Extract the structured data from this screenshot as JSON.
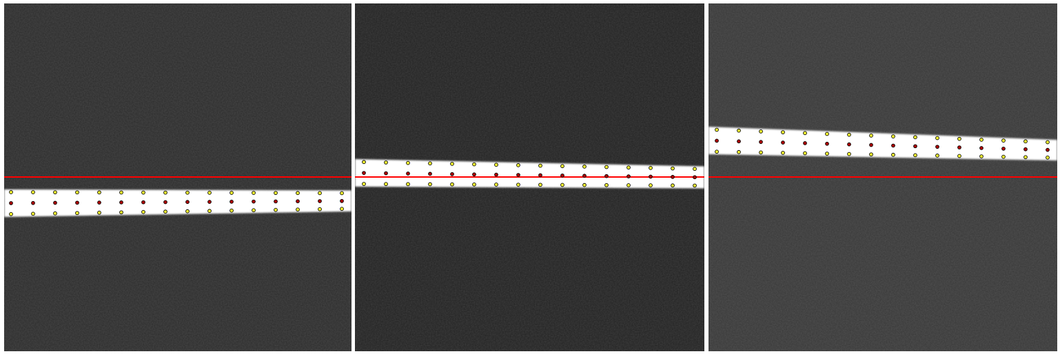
{
  "colors": {
    "background": "#ffffff",
    "reference_line": "#ff0000",
    "edge_marker": "#ffff33",
    "center_marker": "#b00000",
    "marker_stroke": "#000000",
    "stripe": "#ffffff"
  },
  "panels": [
    {
      "name": "panel-1",
      "background_tone": "#2c2c2c",
      "marker_count": 16
    },
    {
      "name": "panel-2",
      "background_tone": "#222222",
      "marker_count": 16
    },
    {
      "name": "panel-3",
      "background_tone": "#383838",
      "marker_count": 16
    }
  ]
}
